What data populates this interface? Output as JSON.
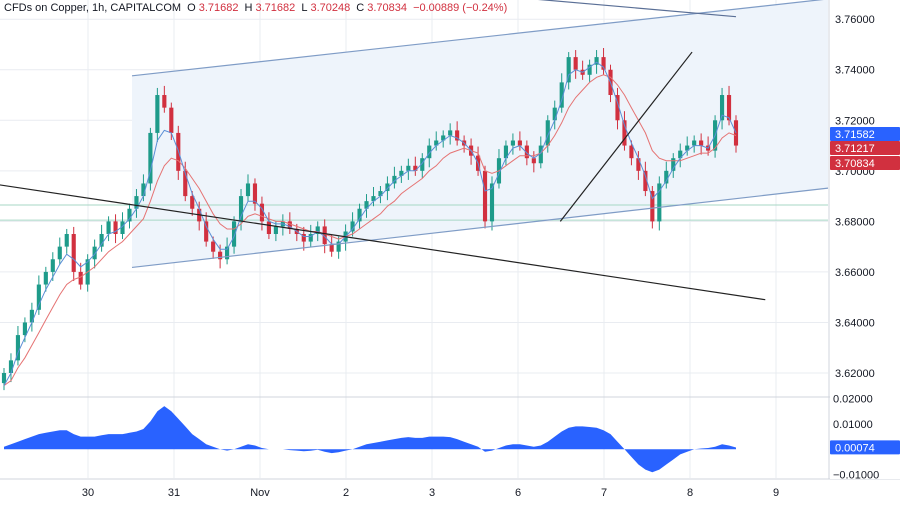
{
  "header": {
    "symbol": "CFDs on Copper, 1h, CAPITALCOM",
    "open_label": "O",
    "open": "3.71682",
    "high_label": "H",
    "high": "3.71682",
    "low_label": "L",
    "low": "3.70248",
    "close_label": "C",
    "close": "3.70834",
    "change": "−0.00889 (−0.24%)"
  },
  "colors": {
    "up": "#1e9b8a",
    "down": "#d1303f",
    "ma_fast": "#5b8fd6",
    "ma_slow": "#e57373",
    "channel": "#7f9cc6",
    "channel_fill": "#eef4fb",
    "trendline": "#222222",
    "hline": "#a7d7c5",
    "oscillator": "#2962ff",
    "grid": "#e9ecf1",
    "label_blue": "#2962ff",
    "label_red": "#d1303f"
  },
  "chart_data": {
    "type": "candlestick",
    "instrument": "CFDs on Copper",
    "interval": "1h",
    "x_ticks": [
      "30",
      "31",
      "Nov",
      "2",
      "3",
      "6",
      "7",
      "8",
      "9"
    ],
    "y_ticks": [
      "3.76000",
      "3.74000",
      "3.72000",
      "3.70000",
      "3.68000",
      "3.66000",
      "3.64000",
      "3.62000"
    ],
    "ylim": [
      3.6105,
      3.7676
    ],
    "price_labels": [
      {
        "value": 3.71582,
        "text": "3.71582",
        "color": "#2962ff"
      },
      {
        "value": 3.71217,
        "text": "3.71217",
        "color": "#d1303f"
      },
      {
        "value": 3.70834,
        "text": "3.70834",
        "color": "#d1303f"
      }
    ],
    "close_series": [
      3.62,
      3.625,
      3.635,
      3.64,
      3.645,
      3.655,
      3.66,
      3.665,
      3.67,
      3.675,
      3.66,
      3.655,
      3.665,
      3.67,
      3.675,
      3.68,
      3.675,
      3.68,
      3.685,
      3.69,
      3.695,
      3.715,
      3.73,
      3.725,
      3.715,
      3.7,
      3.69,
      3.685,
      3.68,
      3.672,
      3.668,
      3.665,
      3.67,
      3.68,
      3.69,
      3.695,
      3.687,
      3.68,
      3.675,
      3.678,
      3.68,
      3.677,
      3.675,
      3.672,
      3.675,
      3.678,
      3.671,
      3.668,
      3.672,
      3.676,
      3.68,
      3.685,
      3.688,
      3.69,
      3.692,
      3.695,
      3.698,
      3.7,
      3.702,
      3.7,
      3.705,
      3.71,
      3.712,
      3.714,
      3.716,
      3.712,
      3.71,
      3.706,
      3.7,
      3.68,
      3.695,
      3.705,
      3.71,
      3.712,
      3.71,
      3.705,
      3.703,
      3.71,
      3.72,
      3.725,
      3.735,
      3.745,
      3.74,
      3.738,
      3.742,
      3.745,
      3.74,
      3.73,
      3.72,
      3.71,
      3.705,
      3.7,
      3.692,
      3.68,
      3.695,
      3.7,
      3.705,
      3.708,
      3.71,
      3.712,
      3.71,
      3.708,
      3.72,
      3.73,
      3.72,
      3.71
    ],
    "ma_fast": [
      3.615,
      3.62,
      3.628,
      3.634,
      3.64,
      3.647,
      3.653,
      3.658,
      3.663,
      3.667,
      3.665,
      3.662,
      3.664,
      3.667,
      3.671,
      3.675,
      3.676,
      3.678,
      3.681,
      3.685,
      3.69,
      3.7,
      3.712,
      3.716,
      3.715,
      3.708,
      3.699,
      3.691,
      3.685,
      3.678,
      3.673,
      3.669,
      3.669,
      3.674,
      3.682,
      3.688,
      3.688,
      3.685,
      3.68,
      3.679,
      3.679,
      3.678,
      3.676,
      3.674,
      3.674,
      3.676,
      3.674,
      3.671,
      3.671,
      3.674,
      3.677,
      3.681,
      3.685,
      3.688,
      3.69,
      3.693,
      3.696,
      3.698,
      3.7,
      3.7,
      3.703,
      3.707,
      3.71,
      3.712,
      3.714,
      3.713,
      3.711,
      3.708,
      3.703,
      3.692,
      3.693,
      3.699,
      3.705,
      3.709,
      3.71,
      3.707,
      3.705,
      3.707,
      3.714,
      3.72,
      3.728,
      3.738,
      3.74,
      3.739,
      3.741,
      3.743,
      3.741,
      3.735,
      3.727,
      3.718,
      3.711,
      3.705,
      3.698,
      3.689,
      3.692,
      3.696,
      3.701,
      3.705,
      3.708,
      3.71,
      3.71,
      3.709,
      3.714,
      3.722,
      3.721,
      3.715
    ],
    "ma_slow": [
      3.615,
      3.617,
      3.622,
      3.626,
      3.631,
      3.636,
      3.641,
      3.646,
      3.651,
      3.655,
      3.657,
      3.658,
      3.66,
      3.662,
      3.665,
      3.668,
      3.67,
      3.672,
      3.675,
      3.678,
      3.681,
      3.688,
      3.696,
      3.702,
      3.705,
      3.704,
      3.701,
      3.697,
      3.693,
      3.688,
      3.683,
      3.679,
      3.677,
      3.677,
      3.679,
      3.682,
      3.683,
      3.682,
      3.681,
      3.68,
      3.68,
      3.679,
      3.678,
      3.677,
      3.676,
      3.676,
      3.675,
      3.674,
      3.673,
      3.674,
      3.675,
      3.677,
      3.679,
      3.681,
      3.683,
      3.686,
      3.688,
      3.691,
      3.693,
      3.695,
      3.697,
      3.7,
      3.702,
      3.705,
      3.707,
      3.708,
      3.709,
      3.708,
      3.707,
      3.7,
      3.699,
      3.7,
      3.702,
      3.704,
      3.706,
      3.706,
      3.706,
      3.707,
      3.71,
      3.714,
      3.719,
      3.725,
      3.729,
      3.732,
      3.735,
      3.737,
      3.738,
      3.737,
      3.734,
      3.73,
      3.725,
      3.72,
      3.715,
      3.708,
      3.705,
      3.704,
      3.704,
      3.704,
      3.705,
      3.706,
      3.707,
      3.707,
      3.709,
      3.713,
      3.715,
      3.714
    ],
    "trendlines": [
      {
        "name": "channel-upper",
        "points": [
          [
            0.0,
            3.732
          ],
          [
            1.0,
            3.764
          ]
        ]
      },
      {
        "name": "channel-lower",
        "points": [
          [
            0.0,
            3.656
          ],
          [
            1.0,
            3.689
          ]
        ]
      },
      {
        "name": "descending-line",
        "points": [
          [
            -0.18,
            3.702
          ],
          [
            1.04,
            3.649
          ]
        ]
      },
      {
        "name": "top-descending-line",
        "points": [
          [
            0.05,
            3.785
          ],
          [
            1.0,
            3.761
          ]
        ]
      },
      {
        "name": "rising-support",
        "points": [
          [
            0.76,
            3.68
          ],
          [
            0.94,
            3.747
          ]
        ]
      }
    ],
    "h_levels": [
      3.6865,
      3.6805
    ],
    "oscillator": {
      "y_ticks": [
        "0.02000",
        "0.01000",
        "−0.01000"
      ],
      "ylim": [
        -0.0113,
        0.0202
      ],
      "last_label": "0.00074",
      "values": [
        0.001,
        0.002,
        0.003,
        0.004,
        0.005,
        0.006,
        0.0065,
        0.007,
        0.0075,
        0.0075,
        0.006,
        0.005,
        0.005,
        0.005,
        0.0055,
        0.006,
        0.006,
        0.006,
        0.0065,
        0.007,
        0.008,
        0.011,
        0.015,
        0.017,
        0.015,
        0.012,
        0.009,
        0.006,
        0.004,
        0.002,
        0.001,
        0.0,
        -0.0005,
        0.0,
        0.001,
        0.002,
        0.0015,
        0.0005,
        0.0,
        0.0,
        0.0,
        -0.0003,
        -0.0005,
        -0.0008,
        -0.0006,
        -0.0002,
        -0.001,
        -0.0015,
        -0.0012,
        -0.0005,
        0.0,
        0.001,
        0.002,
        0.0025,
        0.003,
        0.0035,
        0.004,
        0.0045,
        0.0048,
        0.0045,
        0.0045,
        0.005,
        0.005,
        0.005,
        0.0048,
        0.004,
        0.003,
        0.002,
        0.001,
        -0.001,
        -0.0005,
        0.0005,
        0.0015,
        0.002,
        0.002,
        0.0015,
        0.001,
        0.0015,
        0.003,
        0.005,
        0.007,
        0.0085,
        0.009,
        0.009,
        0.0088,
        0.0085,
        0.0075,
        0.006,
        0.003,
        0.0,
        -0.003,
        -0.006,
        -0.008,
        -0.009,
        -0.008,
        -0.006,
        -0.004,
        -0.002,
        -0.001,
        0.0,
        0.0003,
        0.0005,
        0.001,
        0.002,
        0.0015,
        0.0007
      ]
    }
  }
}
